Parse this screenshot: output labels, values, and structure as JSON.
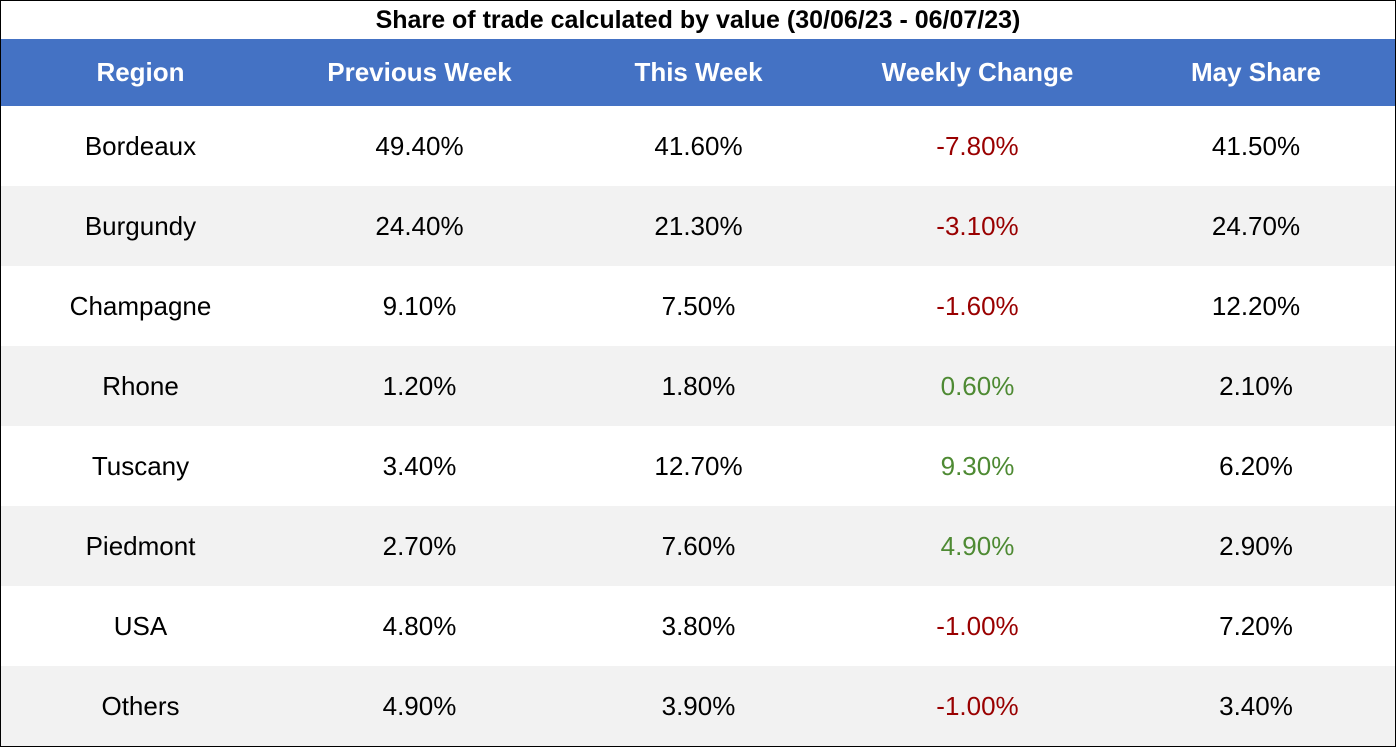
{
  "chart_data": {
    "type": "table",
    "title": "Share of trade calculated by value (30/06/23 - 06/07/23)",
    "columns": [
      "Region",
      "Previous Week",
      "This Week",
      "Weekly Change",
      "May Share"
    ],
    "rows": [
      {
        "region": "Bordeaux",
        "previous_week": "49.40%",
        "this_week": "41.60%",
        "weekly_change": "-7.80%",
        "may_share": "41.50%"
      },
      {
        "region": "Burgundy",
        "previous_week": "24.40%",
        "this_week": "21.30%",
        "weekly_change": "-3.10%",
        "may_share": "24.70%"
      },
      {
        "region": "Champagne",
        "previous_week": "9.10%",
        "this_week": "7.50%",
        "weekly_change": "-1.60%",
        "may_share": "12.20%"
      },
      {
        "region": "Rhone",
        "previous_week": "1.20%",
        "this_week": "1.80%",
        "weekly_change": "0.60%",
        "may_share": "2.10%"
      },
      {
        "region": "Tuscany",
        "previous_week": "3.40%",
        "this_week": "12.70%",
        "weekly_change": "9.30%",
        "may_share": "6.20%"
      },
      {
        "region": "Piedmont",
        "previous_week": "2.70%",
        "this_week": "7.60%",
        "weekly_change": "4.90%",
        "may_share": "2.90%"
      },
      {
        "region": "USA",
        "previous_week": "4.80%",
        "this_week": "3.80%",
        "weekly_change": "-1.00%",
        "may_share": "7.20%"
      },
      {
        "region": "Others",
        "previous_week": "4.90%",
        "this_week": "3.90%",
        "weekly_change": "-1.00%",
        "may_share": "3.40%"
      }
    ]
  },
  "colors": {
    "header_bg": "#4472c4",
    "header_text": "#ffffff",
    "row_odd_bg": "#ffffff",
    "row_even_bg": "#f2f2f2",
    "negative": "#990000",
    "positive": "#4e8a33",
    "text": "#000000"
  }
}
